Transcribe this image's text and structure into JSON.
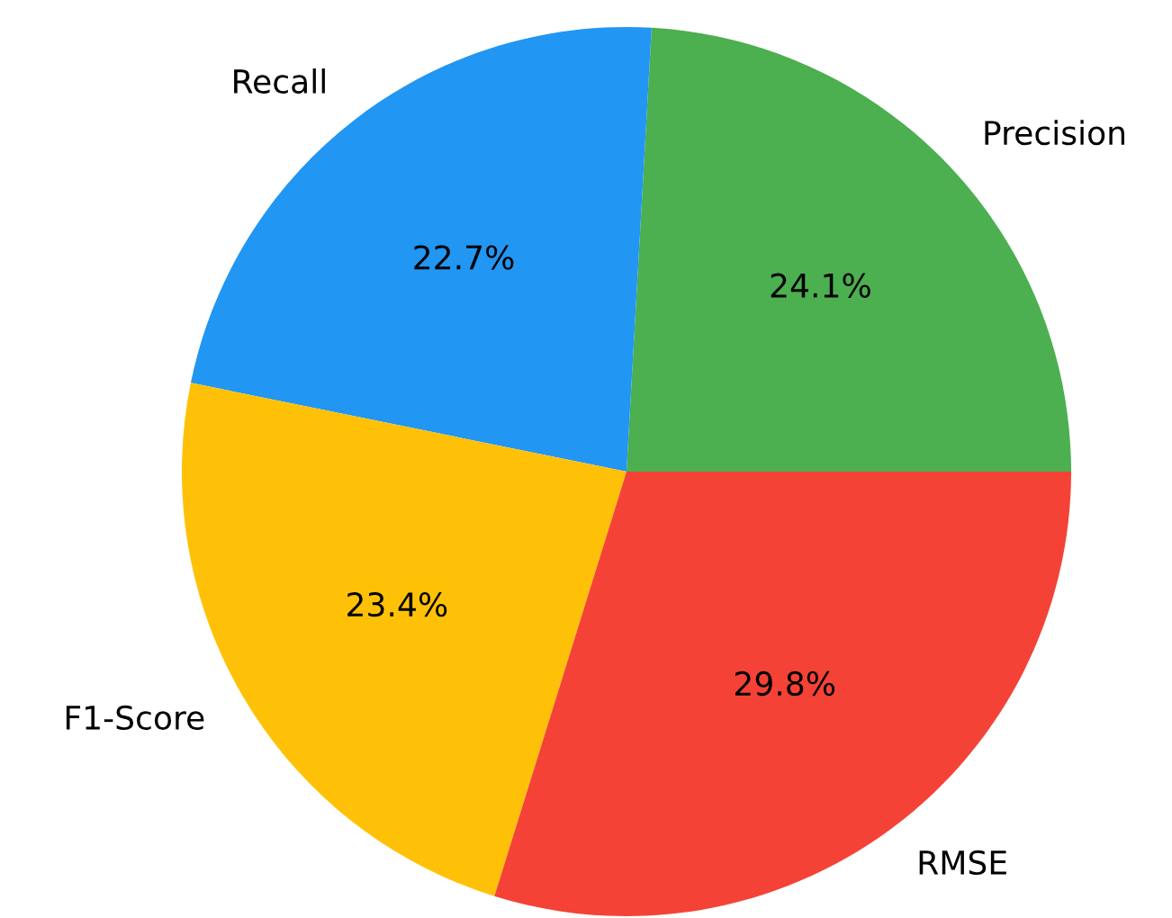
{
  "chart_data": {
    "type": "pie",
    "categories": [
      "Precision",
      "Recall",
      "F1-Score",
      "RMSE"
    ],
    "values": [
      24.1,
      22.7,
      23.4,
      29.8
    ],
    "colors": [
      "#4caf50",
      "#2196f3",
      "#ffc107",
      "#f44336"
    ],
    "value_labels": [
      "24.1%",
      "22.7%",
      "23.4%",
      "29.8%"
    ]
  }
}
